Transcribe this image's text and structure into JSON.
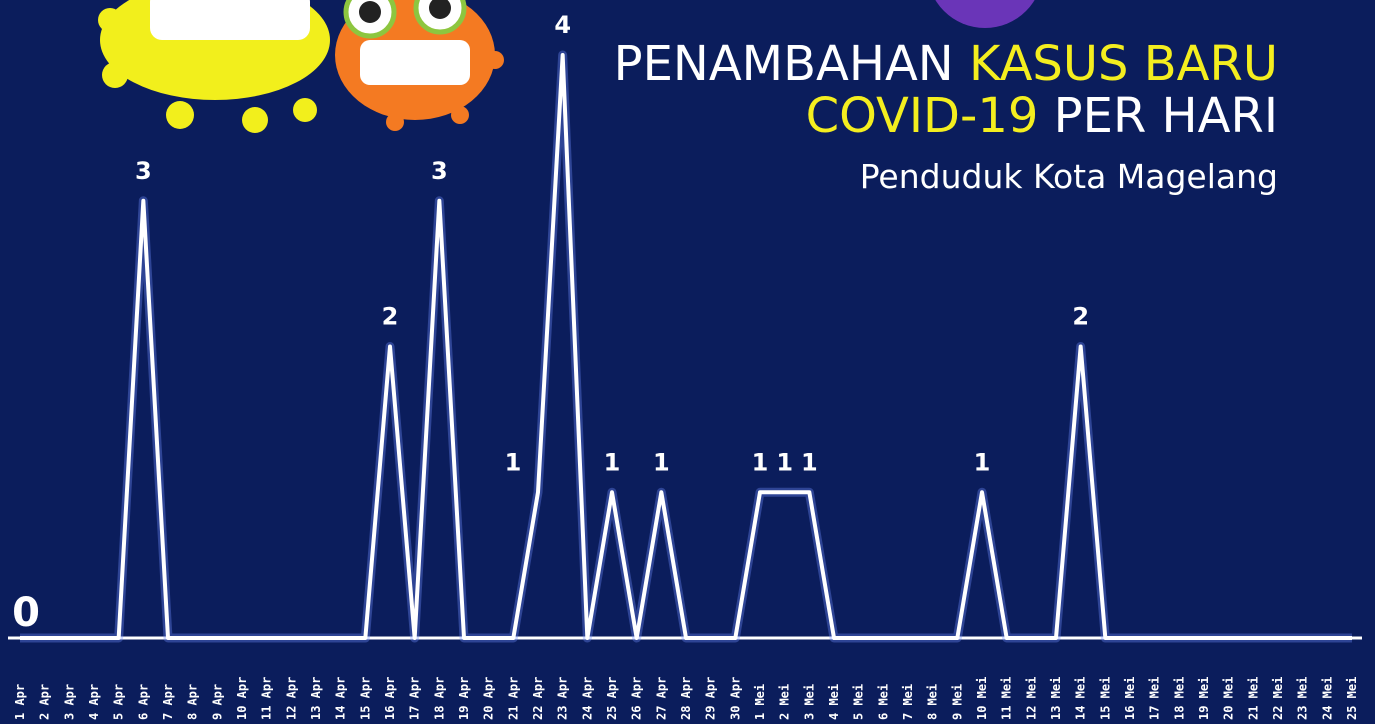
{
  "chart_data": {
    "type": "line",
    "title_parts": [
      {
        "text": "PENAMBAHAN",
        "color": "#ffffff"
      },
      {
        "text": "KASUS BARU",
        "color": "#f4ee1f"
      },
      {
        "text": "COVID-19",
        "color": "#f4ee1f"
      },
      {
        "text": "PER HARI",
        "color": "#ffffff"
      }
    ],
    "subtitle": "Penduduk Kota Magelang",
    "color": "#ffffff",
    "categories": [
      "1 Apr",
      "2 Apr",
      "3 Apr",
      "4 Apr",
      "5 Apr",
      "6 Apr",
      "7 Apr",
      "8 Apr",
      "9 Apr",
      "10 Apr",
      "11 Apr",
      "12 Apr",
      "13 Apr",
      "14 Apr",
      "15 Apr",
      "16 Apr",
      "17 Apr",
      "18 Apr",
      "19 Apr",
      "20 Apr",
      "21 Apr",
      "22 Apr",
      "23 Apr",
      "24 Apr",
      "25 Apr",
      "26 Apr",
      "27 Apr",
      "28 Apr",
      "29 Apr",
      "30 Apr",
      "1 Mei",
      "2 Mei",
      "3 Mei",
      "4 Mei",
      "5 Mei",
      "6 Mei",
      "7 Mei",
      "8 Mei",
      "9 Mei",
      "10 Mei",
      "11 Mei",
      "12 Mei",
      "13 Mei",
      "14 Mei",
      "15 Mei",
      "16 Mei",
      "17 Mei",
      "18 Mei",
      "19 Mei",
      "20 Mei",
      "21 Mei",
      "22 Mei",
      "23 Mei",
      "24 Mei",
      "25 Mei"
    ],
    "values": [
      0,
      0,
      0,
      0,
      0,
      3,
      0,
      0,
      0,
      0,
      0,
      0,
      0,
      0,
      0,
      2,
      0,
      3,
      0,
      0,
      0,
      1,
      4,
      0,
      1,
      0,
      1,
      0,
      0,
      0,
      1,
      1,
      1,
      0,
      0,
      0,
      0,
      0,
      0,
      1,
      0,
      0,
      0,
      2,
      0,
      0,
      0,
      0,
      0,
      0,
      0,
      0,
      0,
      0,
      0
    ]
  }
}
